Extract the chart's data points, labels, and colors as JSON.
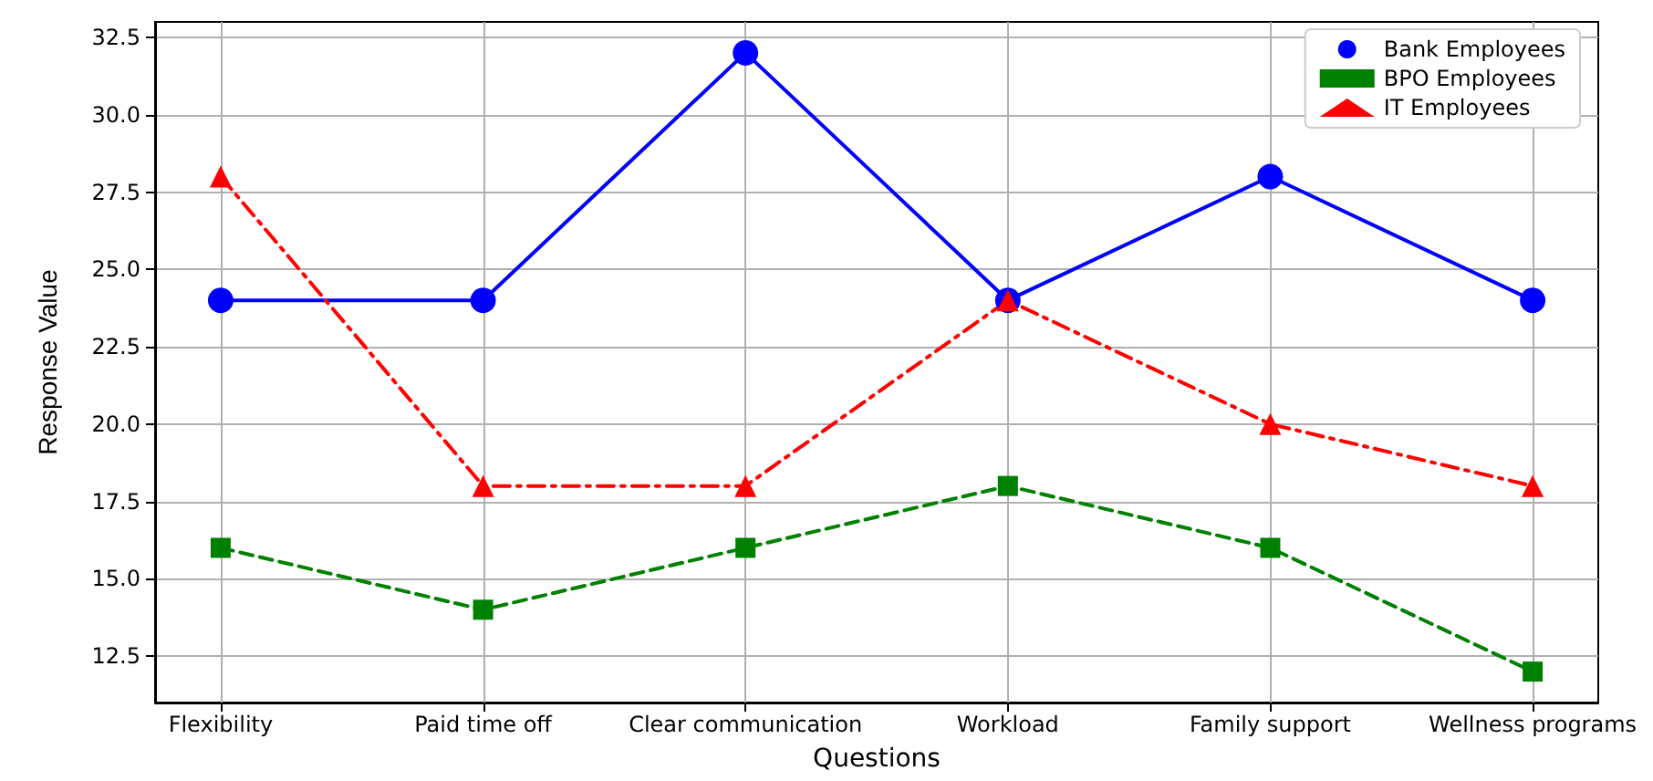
{
  "chart_data": {
    "type": "line",
    "xlabel": "Questions",
    "ylabel": "Response Value",
    "categories": [
      "Flexibility",
      "Paid time off",
      "Clear communication",
      "Workload",
      "Family support",
      "Wellness programs"
    ],
    "series": [
      {
        "name": "Bank Employees",
        "color": "#0000ff",
        "values": [
          24,
          24,
          32,
          24,
          28,
          24
        ],
        "marker": "circle",
        "line_style": "solid"
      },
      {
        "name": "BPO Employees",
        "color": "#008000",
        "values": [
          16,
          14,
          16,
          18,
          16,
          12
        ],
        "marker": "square",
        "line_style": "dashed"
      },
      {
        "name": "IT Employees",
        "color": "#ff0000",
        "values": [
          28,
          18,
          18,
          24,
          20,
          18
        ],
        "marker": "triangle",
        "line_style": "dashdot"
      }
    ],
    "ylim": [
      11.0,
      33.0
    ],
    "yticks": [
      {
        "value": 12.5,
        "label": "12.5"
      },
      {
        "value": 15,
        "label": "15.0"
      },
      {
        "value": 17.5,
        "label": "17.5"
      },
      {
        "value": 20,
        "label": "20.0"
      },
      {
        "value": 22.5,
        "label": "22.5"
      },
      {
        "value": 25,
        "label": "25.0"
      },
      {
        "value": 27.5,
        "label": "27.5"
      },
      {
        "value": 30,
        "label": "30.0"
      },
      {
        "value": 32.5,
        "label": "32.5"
      }
    ],
    "grid": true,
    "legend": "top right"
  }
}
